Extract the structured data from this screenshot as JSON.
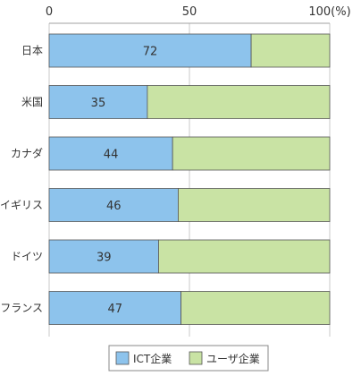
{
  "chart_data": {
    "type": "bar",
    "orientation": "horizontal",
    "stacked": true,
    "categories": [
      "日本",
      "米国",
      "カナダ",
      "イギリス",
      "ドイツ",
      "フランス"
    ],
    "series": [
      {
        "name": "ICT企業",
        "color": "#8dc3ec",
        "values": [
          72,
          35,
          44,
          46,
          39,
          47
        ],
        "show_labels": true
      },
      {
        "name": "ユーザ企業",
        "color": "#c9e3a4",
        "values": [
          28,
          65,
          56,
          54,
          61,
          53
        ],
        "show_labels": false
      }
    ],
    "xlim": [
      0,
      100
    ],
    "xticks": [
      {
        "value": 0,
        "label": "0"
      },
      {
        "value": 50,
        "label": "50"
      },
      {
        "value": 100,
        "label": "100(%)"
      }
    ],
    "grid": true,
    "legend": "bottom"
  }
}
